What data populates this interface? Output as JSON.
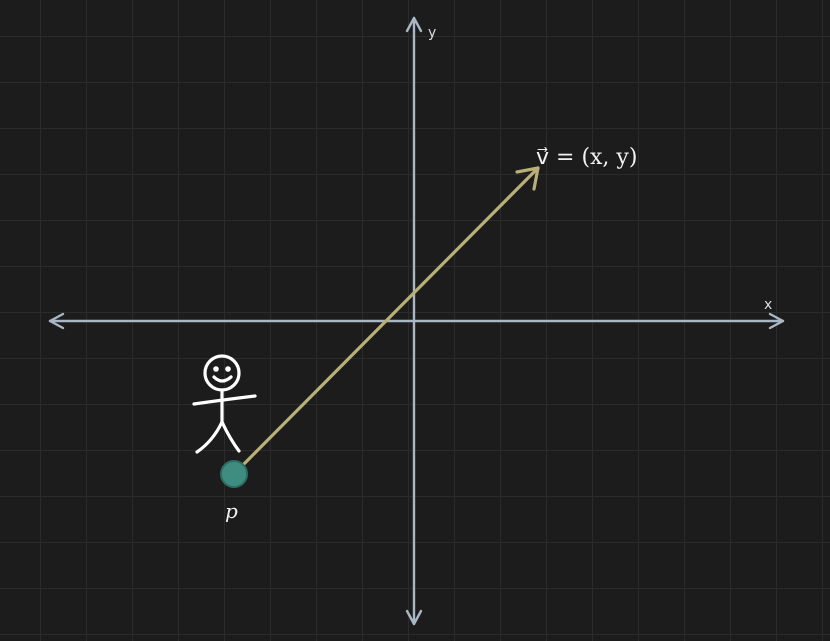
{
  "axes": {
    "x_label": "x",
    "y_label": "y"
  },
  "vector": {
    "label": "v⃗ = (x, y)",
    "color": "#b8b077"
  },
  "point": {
    "label": "p",
    "color": "#3e8d80"
  },
  "colors": {
    "background": "#1c1c1c",
    "grid": "#2a2a2a",
    "axis": "#a9b7c4",
    "figure": "#ffffff"
  }
}
